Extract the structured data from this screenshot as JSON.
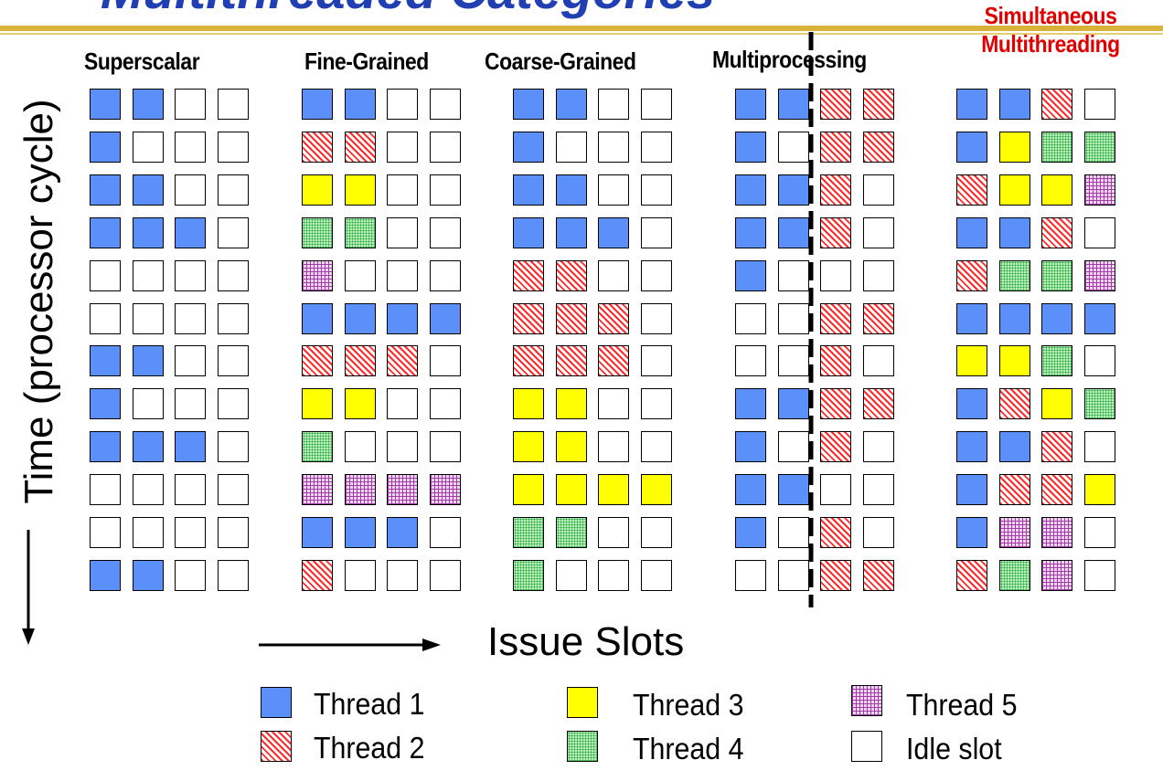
{
  "slide": {
    "title": "Multithreaded Categories",
    "columns": [
      {
        "title": "Superscalar"
      },
      {
        "title": "Fine-Grained"
      },
      {
        "title": "Coarse-Grained"
      },
      {
        "title": "Multiprocessing"
      },
      {
        "title_line1": "Simultaneous",
        "title_line2": "Multithreading"
      }
    ]
  },
  "axes": {
    "time_label": "Time (processor cycle)",
    "issue_label": "Issue Slots"
  },
  "legend": [
    {
      "label": "Thread 1",
      "fill": "t1"
    },
    {
      "label": "Thread 2",
      "fill": "t2"
    },
    {
      "label": "Thread 3",
      "fill": "t3"
    },
    {
      "label": "Thread 4",
      "fill": "t4"
    },
    {
      "label": "Thread 5",
      "fill": "t5"
    },
    {
      "label": "Idle slot",
      "fill": "idle"
    }
  ],
  "colors": {
    "t1": "#5b8ff9",
    "t2_stripe": "#ff2a2a",
    "t3": "#ffff00",
    "t4": "#22a83a",
    "t5": "#a23aa8",
    "title": "#1f3fb3",
    "title_rule": "#d9b23a",
    "smt_title": "#e00000"
  },
  "grids": [
    [
      "1100",
      "1000",
      "1100",
      "1110",
      "0000",
      "0000",
      "1100",
      "1000",
      "1110",
      "0000",
      "0000",
      "1100"
    ],
    [
      "1100",
      "2200",
      "3300",
      "4400",
      "5000",
      "1111",
      "2220",
      "3300",
      "4000",
      "5555",
      "1110",
      "2000"
    ],
    [
      "1100",
      "1000",
      "1100",
      "1110",
      "2200",
      "2220",
      "2220",
      "3300",
      "3300",
      "3333",
      "4400",
      "4000"
    ],
    [
      "1122",
      "1022",
      "1120",
      "1120",
      "1000",
      "0022",
      "0020",
      "1122",
      "1020",
      "1100",
      "1020",
      "0022"
    ],
    [
      "1120",
      "1344",
      "2335",
      "1120",
      "2445",
      "1111",
      "3340",
      "1234",
      "1120",
      "1223",
      "1550",
      "2450"
    ]
  ]
}
